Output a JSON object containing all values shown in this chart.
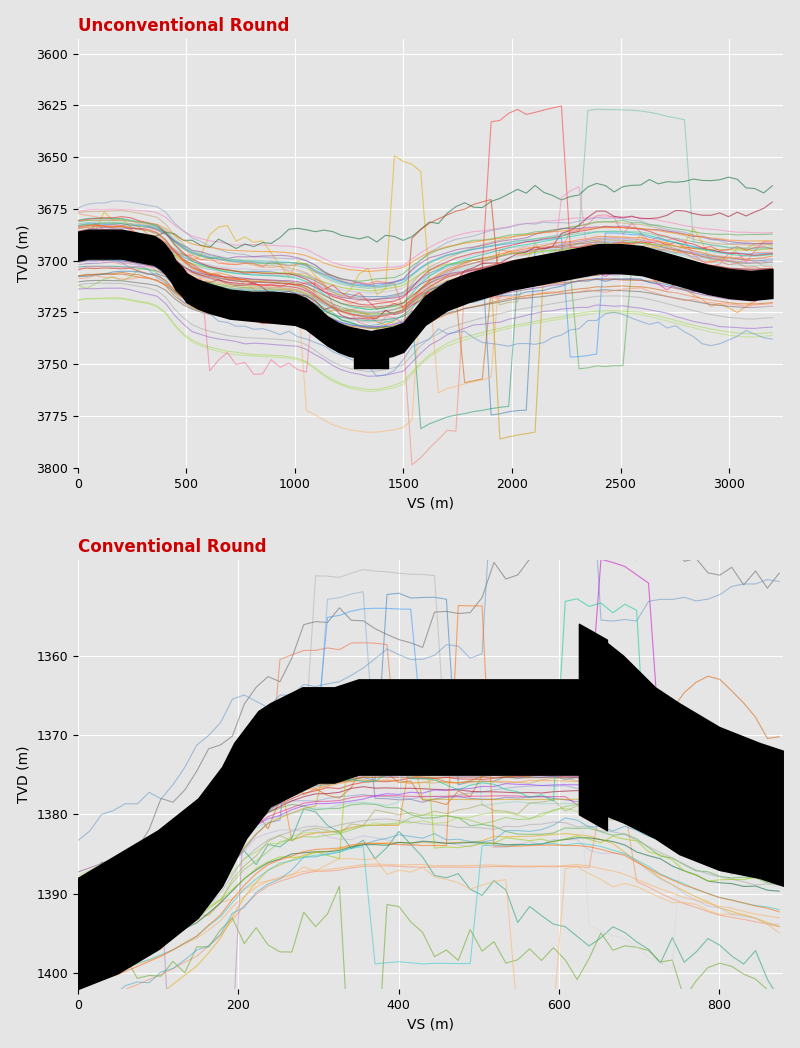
{
  "fig_bg": "#e5e5e5",
  "axes_bg": "#e5e5e5",
  "title1": "Unconventional Round",
  "title2": "Conventional Round",
  "title_color": "#cc0000",
  "title_fontsize": 12,
  "xlabel": "VS (m)",
  "ylabel": "TVD (m)",
  "grid_color": "#ffffff",
  "line_alpha": 0.55,
  "line_width": 0.8,
  "unconventional": {
    "xlim": [
      0,
      3250
    ],
    "ylim": [
      3800,
      3593
    ],
    "xticks": [
      0,
      500,
      1000,
      1500,
      2000,
      2500,
      3000
    ],
    "yticks": [
      3600,
      3625,
      3650,
      3675,
      3700,
      3725,
      3750,
      3775,
      3800
    ],
    "n_lines": 70,
    "seed": 42,
    "zone_upper_x": [
      0,
      50,
      100,
      150,
      200,
      250,
      300,
      350,
      380,
      400,
      430,
      450,
      480,
      500,
      550,
      600,
      700,
      800,
      900,
      1000,
      1050,
      1100,
      1150,
      1200,
      1250,
      1300,
      1350,
      1400,
      1450,
      1500,
      1600,
      1700,
      1800,
      1900,
      2000,
      2100,
      2200,
      2300,
      2350,
      2400,
      2500,
      2600,
      2700,
      2800,
      2900,
      3000,
      3100,
      3200
    ],
    "zone_upper_y": [
      3686,
      3685,
      3685,
      3685,
      3685,
      3686,
      3687,
      3688,
      3690,
      3692,
      3696,
      3700,
      3703,
      3706,
      3709,
      3711,
      3714,
      3715,
      3715,
      3716,
      3718,
      3722,
      3727,
      3730,
      3732,
      3733,
      3734,
      3733,
      3732,
      3730,
      3717,
      3710,
      3706,
      3703,
      3700,
      3698,
      3696,
      3694,
      3693,
      3692,
      3692,
      3693,
      3696,
      3699,
      3702,
      3704,
      3705,
      3704
    ],
    "zone_lower_y": [
      3700,
      3699,
      3699,
      3699,
      3699,
      3700,
      3701,
      3702,
      3704,
      3706,
      3710,
      3714,
      3717,
      3720,
      3723,
      3725,
      3728,
      3729,
      3730,
      3731,
      3733,
      3737,
      3741,
      3744,
      3746,
      3747,
      3748,
      3747,
      3746,
      3744,
      3731,
      3724,
      3720,
      3717,
      3714,
      3712,
      3710,
      3708,
      3707,
      3706,
      3706,
      3707,
      3710,
      3713,
      3716,
      3718,
      3719,
      3718
    ],
    "block_x1": 1270,
    "block_x2": 1430,
    "block_y1": 3735,
    "block_y2": 3752
  },
  "conventional": {
    "xlim": [
      0,
      880
    ],
    "ylim": [
      1402,
      1348
    ],
    "xticks": [
      0,
      200,
      400,
      600,
      800
    ],
    "yticks": [
      1360,
      1370,
      1380,
      1390,
      1400
    ],
    "n_lines": 60,
    "seed": 77,
    "left_wedge_x": [
      0,
      0,
      20,
      50,
      100,
      150,
      180,
      200,
      220,
      240,
      260,
      280,
      300,
      320,
      340,
      360,
      380,
      400,
      420,
      440,
      460,
      480,
      500,
      520,
      540,
      560,
      580,
      600,
      620,
      640,
      660,
      680,
      700,
      720,
      750,
      800,
      850,
      880
    ],
    "left_wedge_upper": [
      1388,
      1388,
      1387,
      1385,
      1382,
      1379,
      1376,
      1373,
      1371,
      1369,
      1368,
      1367,
      1366,
      1365,
      1365,
      1364,
      1364,
      1364,
      1364,
      1363,
      1363,
      1363,
      1363,
      1363,
      1363,
      1363,
      1363,
      1363,
      1363,
      1363,
      1363,
      1364,
      1365,
      1366,
      1368,
      1370,
      1372,
      1373
    ],
    "left_wedge_lower": [
      1402,
      1402,
      1401,
      1399,
      1396,
      1393,
      1390,
      1387,
      1385,
      1383,
      1381,
      1380,
      1379,
      1378,
      1378,
      1378,
      1378,
      1378,
      1378,
      1377,
      1377,
      1377,
      1377,
      1377,
      1377,
      1377,
      1377,
      1377,
      1377,
      1378,
      1378,
      1379,
      1380,
      1381,
      1383,
      1385,
      1387,
      1388
    ],
    "big_left_x": [
      0,
      0,
      50,
      100,
      150,
      180,
      195,
      210,
      225,
      240,
      260,
      280,
      300
    ],
    "big_left_upper": [
      1388,
      1388,
      1385,
      1382,
      1378,
      1374,
      1371,
      1369,
      1367,
      1366,
      1365,
      1364,
      1364
    ],
    "big_left_lower": [
      1402,
      1402,
      1400,
      1397,
      1393,
      1389,
      1386,
      1383,
      1381,
      1379,
      1378,
      1377,
      1376
    ],
    "zone2_x": [
      300,
      320,
      350,
      380,
      400,
      430,
      460,
      500,
      540,
      580,
      610,
      630
    ],
    "zone2_upper": [
      1364,
      1364,
      1363,
      1363,
      1363,
      1363,
      1363,
      1363,
      1363,
      1363,
      1363,
      1363
    ],
    "zone2_lower": [
      1376,
      1376,
      1375,
      1375,
      1375,
      1375,
      1375,
      1375,
      1375,
      1375,
      1375,
      1375
    ],
    "break_x1": 625,
    "break_x2": 660,
    "break_upper1": 1356,
    "break_upper2": 1358,
    "break_lower1": 1380,
    "break_lower2": 1382,
    "zone3_x": [
      655,
      680,
      700,
      720,
      750,
      800,
      850,
      880
    ],
    "zone3_upper": [
      1358,
      1360,
      1362,
      1364,
      1366,
      1369,
      1371,
      1372
    ],
    "zone3_lower": [
      1380,
      1381,
      1382,
      1383,
      1385,
      1387,
      1388,
      1389
    ]
  },
  "colors": [
    "#e41a1c",
    "#377eb8",
    "#4daf4a",
    "#984ea3",
    "#ff7f00",
    "#a65628",
    "#f781bf",
    "#aaaaaa",
    "#66c2a5",
    "#fc8d62",
    "#8da0cb",
    "#e78ac3",
    "#a6d854",
    "#e6c619",
    "#c4a265",
    "#b3b3b3",
    "#1b9e77",
    "#d95f02",
    "#7570b3",
    "#e7298a",
    "#66a61e",
    "#e6ab02",
    "#a6761d",
    "#666666",
    "#8dd3c7",
    "#aaaa55",
    "#bebada",
    "#fb8072",
    "#80b1d3",
    "#fdb462",
    "#b3de69",
    "#fccde5",
    "#d9d9d9",
    "#bc80bd",
    "#ccebc5",
    "#88cc44",
    "#a50026",
    "#d73027",
    "#f46d43",
    "#fdae61",
    "#44aacc",
    "#9966cc",
    "#3399ff",
    "#cc6600",
    "#006633",
    "#993399",
    "#cc3300",
    "#336699",
    "#99cc00",
    "#ff6699",
    "#cc9900",
    "#6699cc",
    "#ff3333",
    "#009966",
    "#cc00cc",
    "#ff9933",
    "#33cccc",
    "#9933ff",
    "#ff6600",
    "#00cc99"
  ]
}
